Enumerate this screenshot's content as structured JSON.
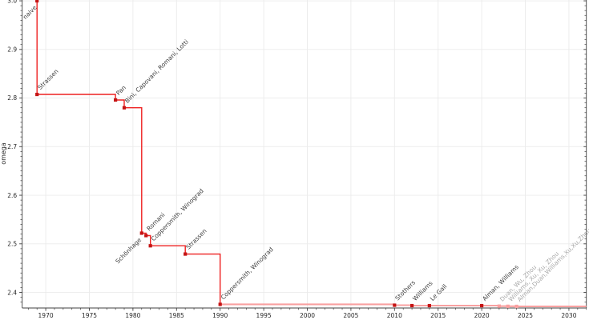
{
  "chart_data": {
    "type": "line",
    "subtype": "step-post",
    "title": "",
    "xlabel": "",
    "ylabel": "omega",
    "grid": true,
    "legend": "none",
    "xlim": [
      1967.3,
      2032.0
    ],
    "ylim": [
      2.368,
      3.0017
    ],
    "x_major_ticks": [
      1970,
      1975,
      1980,
      1985,
      1990,
      1995,
      2000,
      2005,
      2010,
      2015,
      2020,
      2025,
      2030
    ],
    "x_minor_step": 1,
    "y_major_ticks": [
      2.4,
      2.5,
      2.6,
      2.7,
      2.8,
      2.9,
      3.0
    ],
    "y_minor_step": 0.01,
    "colors": {
      "line": "#ee2020",
      "line_faded": "#f9a0a0",
      "marker": "#c41414",
      "marker_muted": "#f9a0a0",
      "label": "#3d3d3d",
      "label_muted": "#a9a9a9",
      "grid": "#ebebeb",
      "axis": "#404040",
      "tick_label": "#262626"
    },
    "faded_from_index": 8,
    "events": [
      {
        "label": "naive",
        "year": 1969,
        "omega": 3.0,
        "side": "below",
        "muted": false
      },
      {
        "label": "Strassen",
        "year": 1969,
        "omega": 2.8074,
        "side": "above",
        "muted": false
      },
      {
        "label": "Pan",
        "year": 1978,
        "omega": 2.796,
        "side": "above",
        "muted": false
      },
      {
        "label": "Bini, Capovani, Romani, Lotti",
        "year": 1979,
        "omega": 2.78,
        "side": "above",
        "muted": false
      },
      {
        "label": "Schönhage",
        "year": 1981,
        "omega": 2.522,
        "side": "below",
        "muted": false
      },
      {
        "label": "Romani",
        "year": 1981.5,
        "omega": 2.517,
        "side": "above",
        "muted": false
      },
      {
        "label": "Coppersmith, Winograd",
        "year": 1982,
        "omega": 2.496,
        "side": "above",
        "muted": false
      },
      {
        "label": "Strassen",
        "year": 1986,
        "omega": 2.479,
        "side": "above",
        "muted": false
      },
      {
        "label": "Coppersmith, Winograd",
        "year": 1990,
        "omega": 2.3755,
        "side": "above",
        "muted": false
      },
      {
        "label": "Stothers",
        "year": 2010,
        "omega": 2.3737,
        "side": "above",
        "muted": false
      },
      {
        "label": "Williams",
        "year": 2012,
        "omega": 2.3729,
        "side": "above",
        "muted": false
      },
      {
        "label": "Le Gall",
        "year": 2014,
        "omega": 2.3728639,
        "side": "above",
        "muted": false
      },
      {
        "label": "Alman, Williams",
        "year": 2020,
        "omega": 2.3728596,
        "side": "above",
        "muted": false
      },
      {
        "label": "Duan, Wu, Zhou",
        "year": 2022,
        "omega": 2.371866,
        "side": "above",
        "muted": true
      },
      {
        "label": "Williams, Xu, Xu, Zhou",
        "year": 2023,
        "omega": 2.371552,
        "side": "above",
        "muted": true
      },
      {
        "label": "Alman,Duan,Williams,Xu,Xu,Zhou",
        "year": 2024,
        "omega": 2.371339,
        "side": "above",
        "muted": true
      }
    ]
  }
}
